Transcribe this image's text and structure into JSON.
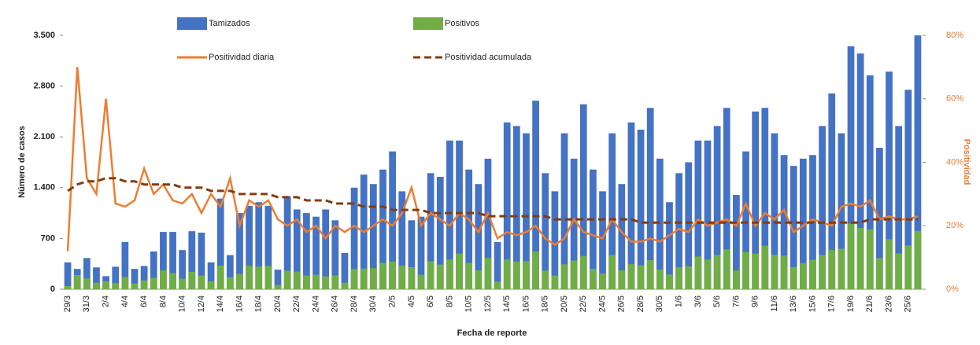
{
  "chart_data": {
    "type": "combo",
    "y_label": "Número de casos",
    "y2_label": "Positividad",
    "x_label": "Fecha de reporte",
    "categories": [
      "29/3",
      null,
      "31/3",
      null,
      "2/4",
      null,
      "4/4",
      null,
      "6/4",
      null,
      "8/4",
      null,
      "10/4",
      null,
      "12/4",
      null,
      "14/4",
      null,
      "16/4",
      null,
      "18/4",
      null,
      "20/4",
      null,
      "22/4",
      null,
      "24/4",
      null,
      "26/4",
      null,
      "28/4",
      null,
      "30/4",
      null,
      "2/5",
      null,
      "4/5",
      null,
      "6/5",
      null,
      "8/5",
      null,
      "10/5",
      null,
      "12/5",
      null,
      "14/5",
      null,
      "16/5",
      null,
      "18/5",
      null,
      "20/5",
      null,
      "22/5",
      null,
      "24/5",
      null,
      "26/5",
      null,
      "28/5",
      null,
      "30/5",
      null,
      "1/6",
      null,
      "3/6",
      null,
      "5/6",
      null,
      "7/6",
      null,
      "9/6",
      null,
      "11/6",
      null,
      "13/6",
      null,
      "15/6",
      null,
      "17/6",
      null,
      "19/6",
      null,
      "21/6",
      null,
      "23/6",
      null,
      "25/6",
      null
    ],
    "series": [
      {
        "name": "Tamizados",
        "type": "bar",
        "color": "#4472c4",
        "values": [
          370,
          280,
          430,
          300,
          180,
          310,
          650,
          280,
          320,
          520,
          790,
          790,
          540,
          800,
          780,
          370,
          1250,
          470,
          1050,
          1150,
          1200,
          1150,
          270,
          1280,
          1100,
          1050,
          1000,
          1100,
          950,
          500,
          1400,
          1580,
          1450,
          1650,
          1900,
          1350,
          950,
          1000,
          1600,
          1550,
          2050,
          2050,
          1650,
          1450,
          1800,
          650,
          2300,
          2250,
          2150,
          2600,
          1600,
          1350,
          2150,
          1800,
          2550,
          1650,
          1350,
          2150,
          1450,
          2300,
          2200,
          2500,
          1800,
          1200,
          1600,
          1750,
          2050,
          2050,
          2250,
          2500,
          1300,
          1900,
          2450,
          2500,
          2150,
          1850,
          1700,
          1800,
          1850,
          2250,
          2700,
          2150,
          3350,
          3250,
          2950,
          1950,
          3000,
          2250,
          2750,
          3500
        ]
      },
      {
        "name": "Positivos",
        "type": "bar",
        "color": "#70ad47",
        "values": [
          44,
          196,
          150,
          90,
          108,
          84,
          169,
          78,
          122,
          156,
          261,
          221,
          146,
          240,
          187,
          111,
          325,
          165,
          210,
          322,
          312,
          322,
          59,
          256,
          242,
          189,
          200,
          176,
          190,
          90,
          280,
          284,
          290,
          363,
          380,
          324,
          304,
          200,
          384,
          341,
          410,
          492,
          363,
          261,
          432,
          104,
          414,
          383,
          387,
          520,
          256,
          189,
          344,
          396,
          459,
          281,
          216,
          473,
          261,
          345,
          330,
          400,
          270,
          204,
          304,
          315,
          451,
          410,
          473,
          550,
          260,
          513,
          490,
          600,
          473,
          463,
          306,
          360,
          407,
          473,
          540,
          559,
          905,
          845,
          826,
          429,
          690,
          495,
          605,
          805
        ]
      },
      {
        "name": "Positividad diaria",
        "type": "line",
        "axis": "y2",
        "color": "#ed7d31",
        "line_style": "solid",
        "values": [
          12,
          70,
          35,
          30,
          60,
          27,
          26,
          28,
          38,
          30,
          33,
          28,
          27,
          30,
          24,
          30,
          26,
          35,
          20,
          28,
          26,
          28,
          22,
          20,
          22,
          18,
          20,
          16,
          20,
          18,
          20,
          18,
          20,
          22,
          20,
          24,
          32,
          20,
          24,
          22,
          20,
          24,
          22,
          18,
          24,
          16,
          18,
          17,
          18,
          20,
          16,
          14,
          16,
          22,
          18,
          17,
          16,
          22,
          18,
          15,
          15,
          16,
          15,
          17,
          19,
          18,
          22,
          20,
          21,
          22,
          20,
          27,
          20,
          24,
          22,
          25,
          18,
          20,
          22,
          21,
          20,
          26,
          27,
          26,
          28,
          22,
          23,
          22,
          22,
          23
        ]
      },
      {
        "name": "Positividad acumulada",
        "type": "line",
        "axis": "y2",
        "color": "#843c0c",
        "line_style": "dashed",
        "values": [
          31,
          33,
          34,
          34,
          35,
          35,
          34,
          34,
          33,
          33,
          33,
          33,
          32,
          32,
          32,
          31,
          31,
          31,
          30,
          30,
          30,
          30,
          29,
          29,
          29,
          28,
          28,
          28,
          27,
          27,
          27,
          26,
          26,
          26,
          25,
          25,
          25,
          25,
          24,
          24,
          24,
          24,
          24,
          24,
          23,
          23,
          23,
          23,
          23,
          23,
          23,
          22,
          22,
          22,
          22,
          22,
          22,
          22,
          22,
          22,
          21,
          21,
          21,
          21,
          21,
          21,
          21,
          21,
          21,
          21,
          21,
          21,
          21,
          21,
          21,
          21,
          21,
          21,
          21,
          21,
          21,
          21,
          21,
          21,
          22,
          22,
          22,
          22,
          22,
          22
        ]
      }
    ],
    "ylim": [
      0,
      3500
    ],
    "yticks": [
      0,
      700,
      {
        "value": 1400,
        "label": "1.400"
      },
      {
        "value": 2100,
        "label": "2.100"
      },
      {
        "value": 2800,
        "label": "2.800"
      },
      {
        "value": 3500,
        "label": "3.500"
      }
    ],
    "y2lim": [
      0,
      80
    ],
    "y2ticks": [
      {
        "value": 0,
        "label": "0%"
      },
      {
        "value": 20,
        "label": "20%"
      },
      {
        "value": 40,
        "label": "40%"
      },
      {
        "value": 60,
        "label": "60%"
      },
      {
        "value": 80,
        "label": "80%"
      }
    ],
    "grid": false
  }
}
